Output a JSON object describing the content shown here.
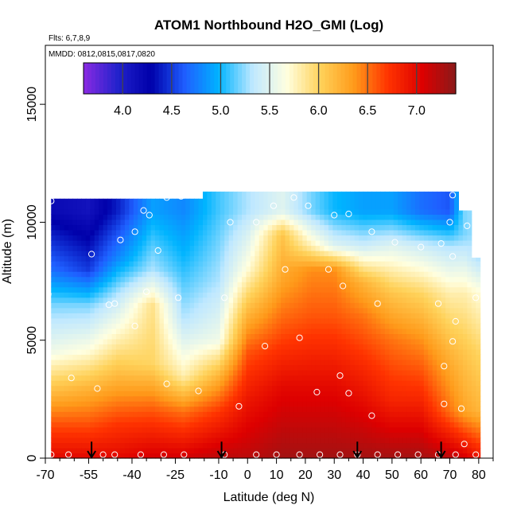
{
  "chart_data": {
    "type": "heatmap",
    "title": "ATOM1 Northbound H2O_GMI (Log)",
    "flights_label": "Flts: 6,7,8,9",
    "dates_label": "MMDD: 0812,0815,0817,0820",
    "xlabel": "Latitude (deg N)",
    "ylabel": "Altitude (m)",
    "xlim": [
      -70,
      85
    ],
    "ylim": [
      0,
      17500
    ],
    "x_ticks": [
      -70,
      -55,
      -40,
      -25,
      -10,
      0,
      10,
      20,
      30,
      40,
      50,
      60,
      70,
      80
    ],
    "x_tick_labels": [
      "-70",
      "-55",
      "-40",
      "-25",
      "-10",
      "0",
      "10",
      "20",
      "30",
      "40",
      "50",
      "60",
      "70",
      "80"
    ],
    "x_minor_ticks": [
      -65,
      -60,
      -50,
      -45,
      -35,
      -30,
      -20,
      -15,
      -5,
      5,
      15,
      25,
      35,
      45,
      55,
      65,
      75,
      85
    ],
    "y_ticks": [
      0,
      5000,
      10000,
      15000
    ],
    "y_tick_labels": [
      "0",
      "5000",
      "10000",
      "15000"
    ],
    "colorbar": {
      "range": [
        3.6,
        7.4
      ],
      "ticks": [
        4.0,
        4.5,
        5.0,
        5.5,
        6.0,
        6.5,
        7.0
      ],
      "tick_labels": [
        "4.0",
        "4.5",
        "5.0",
        "5.5",
        "6.0",
        "6.5",
        "7.0"
      ],
      "colors": [
        "#8a2be2",
        "#2222cc",
        "#0000aa",
        "#1f5fff",
        "#00b4ff",
        "#bfe8ff",
        "#ffffe0",
        "#ffd25a",
        "#ff9a1a",
        "#ff3300",
        "#dd0000",
        "#8b1a1a"
      ]
    },
    "field": {
      "lat_range": [
        -68,
        80
      ],
      "alt_range": [
        0,
        11000
      ],
      "columns": [
        {
          "lat": -68,
          "top": 11000,
          "profile": [
            [
              0,
              7.0
            ],
            [
              1500,
              6.6
            ],
            [
              3000,
              6.1
            ],
            [
              4500,
              5.6
            ],
            [
              6500,
              5.2
            ],
            [
              8000,
              4.7
            ],
            [
              10500,
              4.2
            ]
          ]
        },
        {
          "lat": -55,
          "top": 11000,
          "profile": [
            [
              0,
              7.0
            ],
            [
              1500,
              6.6
            ],
            [
              3000,
              6.2
            ],
            [
              4500,
              5.7
            ],
            [
              6500,
              5.2
            ],
            [
              8000,
              4.5
            ],
            [
              10500,
              4.1
            ]
          ]
        },
        {
          "lat": -45,
          "top": 11000,
          "profile": [
            [
              0,
              7.0
            ],
            [
              1500,
              6.7
            ],
            [
              3000,
              6.3
            ],
            [
              5000,
              5.8
            ],
            [
              7000,
              5.3
            ],
            [
              8500,
              4.8
            ],
            [
              10500,
              4.4
            ]
          ]
        },
        {
          "lat": -33,
          "top": 11000,
          "profile": [
            [
              0,
              7.1
            ],
            [
              2000,
              6.6
            ],
            [
              4000,
              6.0
            ],
            [
              6500,
              5.9
            ],
            [
              8000,
              5.3
            ],
            [
              10500,
              4.9
            ]
          ]
        },
        {
          "lat": -22,
          "top": 11000,
          "profile": [
            [
              0,
              7.1
            ],
            [
              2000,
              6.5
            ],
            [
              3500,
              5.8
            ],
            [
              6000,
              5.3
            ],
            [
              8500,
              5.0
            ],
            [
              10500,
              4.8
            ]
          ]
        },
        {
          "lat": -10,
          "top": 11300,
          "profile": [
            [
              0,
              7.2
            ],
            [
              2000,
              6.7
            ],
            [
              3500,
              6.2
            ],
            [
              5000,
              5.6
            ],
            [
              7500,
              5.3
            ],
            [
              10500,
              5.1
            ]
          ]
        },
        {
          "lat": 0,
          "top": 11300,
          "profile": [
            [
              0,
              7.2
            ],
            [
              2500,
              6.9
            ],
            [
              4500,
              6.6
            ],
            [
              6500,
              6.1
            ],
            [
              8000,
              5.7
            ],
            [
              10500,
              5.3
            ]
          ]
        },
        {
          "lat": 12,
          "top": 11300,
          "profile": [
            [
              0,
              7.3
            ],
            [
              3000,
              7.0
            ],
            [
              5500,
              6.6
            ],
            [
              7500,
              6.3
            ],
            [
              9500,
              6.1
            ],
            [
              10500,
              5.5
            ]
          ]
        },
        {
          "lat": 22,
          "top": 11300,
          "profile": [
            [
              0,
              7.3
            ],
            [
              3000,
              7.0
            ],
            [
              6000,
              6.6
            ],
            [
              8000,
              6.4
            ],
            [
              9000,
              5.8
            ],
            [
              10500,
              5.2
            ]
          ]
        },
        {
          "lat": 30,
          "top": 11300,
          "profile": [
            [
              0,
              7.3
            ],
            [
              3000,
              7.0
            ],
            [
              6000,
              6.6
            ],
            [
              8000,
              6.4
            ],
            [
              9000,
              5.5
            ],
            [
              10500,
              5.0
            ]
          ]
        },
        {
          "lat": 40,
          "top": 11300,
          "profile": [
            [
              0,
              7.3
            ],
            [
              3000,
              6.9
            ],
            [
              6000,
              6.5
            ],
            [
              7500,
              6.2
            ],
            [
              9000,
              5.4
            ],
            [
              10500,
              4.9
            ]
          ]
        },
        {
          "lat": 50,
          "top": 11300,
          "profile": [
            [
              0,
              7.3
            ],
            [
              2500,
              6.8
            ],
            [
              5000,
              6.5
            ],
            [
              7000,
              6.1
            ],
            [
              9000,
              5.5
            ],
            [
              10500,
              4.9
            ]
          ]
        },
        {
          "lat": 60,
          "top": 11300,
          "profile": [
            [
              0,
              7.3
            ],
            [
              2500,
              6.8
            ],
            [
              5000,
              6.4
            ],
            [
              7000,
              6.0
            ],
            [
              9000,
              5.4
            ],
            [
              10500,
              4.7
            ]
          ]
        },
        {
          "lat": 70,
          "top": 11300,
          "profile": [
            [
              0,
              7.2
            ],
            [
              2000,
              6.5
            ],
            [
              4500,
              6.2
            ],
            [
              7000,
              5.8
            ],
            [
              9000,
              5.3
            ],
            [
              10500,
              4.6
            ]
          ]
        },
        {
          "lat": 75,
          "top": 10500,
          "profile": [
            [
              0,
              7.1
            ],
            [
              2000,
              6.3
            ],
            [
              4500,
              6.1
            ],
            [
              7000,
              5.8
            ],
            [
              9500,
              5.2
            ]
          ]
        },
        {
          "lat": 80,
          "top": 8500,
          "profile": [
            [
              0,
              6.9
            ],
            [
              2000,
              6.2
            ],
            [
              4500,
              6.0
            ],
            [
              7000,
              5.7
            ],
            [
              8500,
              5.3
            ]
          ]
        }
      ]
    },
    "points": [
      {
        "lat": -68,
        "alt": 10900
      },
      {
        "lat": -54,
        "alt": 8650
      },
      {
        "lat": -48,
        "alt": 6500
      },
      {
        "lat": -46,
        "alt": 6550
      },
      {
        "lat": -44,
        "alt": 9250
      },
      {
        "lat": -39,
        "alt": 9600
      },
      {
        "lat": -36,
        "alt": 10500
      },
      {
        "lat": -34,
        "alt": 10300
      },
      {
        "lat": -31,
        "alt": 8800
      },
      {
        "lat": -28,
        "alt": 11050
      },
      {
        "lat": -23,
        "alt": 11100
      },
      {
        "lat": -17,
        "alt": 11250
      },
      {
        "lat": -35,
        "alt": 7050
      },
      {
        "lat": -39,
        "alt": 5600
      },
      {
        "lat": -24,
        "alt": 6800
      },
      {
        "lat": -28,
        "alt": 3150
      },
      {
        "lat": -17,
        "alt": 2850
      },
      {
        "lat": -61,
        "alt": 3400
      },
      {
        "lat": -52,
        "alt": 2950
      },
      {
        "lat": -69,
        "alt": 6950
      },
      {
        "lat": -8,
        "alt": 6800
      },
      {
        "lat": -6,
        "alt": 10000
      },
      {
        "lat": 3,
        "alt": 10000
      },
      {
        "lat": 9,
        "alt": 10700
      },
      {
        "lat": 16,
        "alt": 11050
      },
      {
        "lat": 21,
        "alt": 10700
      },
      {
        "lat": 13,
        "alt": 8000
      },
      {
        "lat": 30,
        "alt": 10300
      },
      {
        "lat": 35,
        "alt": 10350
      },
      {
        "lat": 28,
        "alt": 8000
      },
      {
        "lat": 33,
        "alt": 7300
      },
      {
        "lat": 43,
        "alt": 9600
      },
      {
        "lat": 51,
        "alt": 9150
      },
      {
        "lat": 60,
        "alt": 8950
      },
      {
        "lat": 67,
        "alt": 9100
      },
      {
        "lat": 70,
        "alt": 10000
      },
      {
        "lat": 71,
        "alt": 11150
      },
      {
        "lat": 76,
        "alt": 9850
      },
      {
        "lat": 71,
        "alt": 8550
      },
      {
        "lat": 45,
        "alt": 6550
      },
      {
        "lat": 66,
        "alt": 6550
      },
      {
        "lat": 72,
        "alt": 5800
      },
      {
        "lat": 71,
        "alt": 4950
      },
      {
        "lat": 79,
        "alt": 6800
      },
      {
        "lat": 68,
        "alt": 3900
      },
      {
        "lat": 68,
        "alt": 2300
      },
      {
        "lat": 74,
        "alt": 2100
      },
      {
        "lat": 75,
        "alt": 600
      },
      {
        "lat": 6,
        "alt": 4750
      },
      {
        "lat": 18,
        "alt": 5100
      },
      {
        "lat": 32,
        "alt": 3500
      },
      {
        "lat": 35,
        "alt": 2750
      },
      {
        "lat": 24,
        "alt": 2800
      },
      {
        "lat": -3,
        "alt": 2200
      },
      {
        "lat": 43,
        "alt": 1800
      },
      {
        "lat": -68,
        "alt": 150
      },
      {
        "lat": -62,
        "alt": 150
      },
      {
        "lat": -50,
        "alt": 150
      },
      {
        "lat": -46,
        "alt": 150
      },
      {
        "lat": -37,
        "alt": 150
      },
      {
        "lat": -29,
        "alt": 150
      },
      {
        "lat": -22,
        "alt": 150
      },
      {
        "lat": -8,
        "alt": 150
      },
      {
        "lat": 3,
        "alt": 150
      },
      {
        "lat": 10,
        "alt": 150
      },
      {
        "lat": 18,
        "alt": 150
      },
      {
        "lat": 25,
        "alt": 150
      },
      {
        "lat": 32,
        "alt": 150
      },
      {
        "lat": 38,
        "alt": 150
      },
      {
        "lat": 45,
        "alt": 150
      },
      {
        "lat": 52,
        "alt": 150
      },
      {
        "lat": 59,
        "alt": 150
      },
      {
        "lat": 66,
        "alt": 150
      },
      {
        "lat": 72,
        "alt": 150
      },
      {
        "lat": 79,
        "alt": 150
      }
    ],
    "arrows": [
      {
        "lat": -54,
        "alt_top": 700
      },
      {
        "lat": -9,
        "alt_top": 700
      },
      {
        "lat": 38,
        "alt_top": 700
      },
      {
        "lat": 67,
        "alt_top": 700
      }
    ]
  }
}
